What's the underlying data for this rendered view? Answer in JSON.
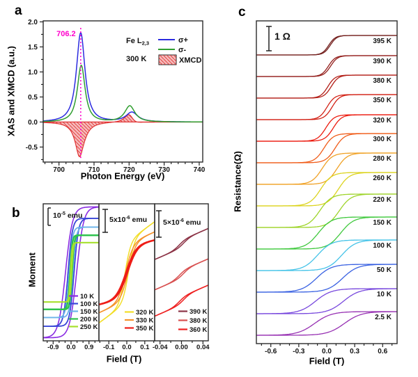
{
  "panels": {
    "a_letter": "a",
    "b_letter": "b",
    "c_letter": "c"
  },
  "chart_data": [
    {
      "id": "a",
      "type": "line",
      "xlabel": "Photon Energy (eV)",
      "ylabel": "XAS and XMCD (a.u.)",
      "xlim": [
        695.5,
        741
      ],
      "ylim": [
        -0.8,
        2.02
      ],
      "xticks": [
        700,
        710,
        720,
        730,
        740
      ],
      "xtick_labels": [
        "700",
        "710",
        "720",
        "730",
        "740"
      ],
      "ytick_values": [
        -0.5,
        0.0,
        0.5,
        1.0,
        1.5,
        2.0
      ],
      "ytick_labels": [
        "-0.5",
        "0.0",
        "0.5",
        "1.0",
        "1.5",
        "2.0"
      ],
      "x_minor_step": 2,
      "y_minor_step": 0.25,
      "annotation": {
        "text": "706.2",
        "x": 706.2,
        "color": "#ff00cc"
      },
      "legend": {
        "sample": "Fe L",
        "sample_sub": "2,3",
        "temperature": "300 K",
        "entries": [
          {
            "label": "σ+",
            "color": "#2b2bdf"
          },
          {
            "label": "σ-",
            "color": "#2f9e2f"
          },
          {
            "label": "XMCD",
            "fill": "#f5baba",
            "hatch": "#e03434"
          }
        ]
      },
      "series": [
        {
          "name": "sigma_plus",
          "color": "#2b2bdf",
          "peaks": [
            {
              "center": 706.2,
              "amp": 1.78,
              "hwhm": 1.6
            },
            {
              "center": 720.8,
              "amp": 0.19,
              "hwhm": 2.2
            }
          ]
        },
        {
          "name": "sigma_minus",
          "color": "#2f9e2f",
          "peaks": [
            {
              "center": 706.35,
              "amp": 1.13,
              "hwhm": 1.45
            },
            {
              "center": 720.2,
              "amp": 0.32,
              "hwhm": 1.9
            }
          ]
        }
      ],
      "xmcd": {
        "name": "XMCD",
        "formula": "sigma_minus - sigma_plus",
        "fill": "#f5baba",
        "hatch": "#e03434",
        "min": {
          "x": 706.2,
          "y": -0.65
        },
        "max": {
          "x": 720.3,
          "y": 0.13
        }
      }
    },
    {
      "id": "b",
      "type": "line",
      "xlabel": "Field (T)",
      "ylabel": "Moment",
      "subpanels": [
        {
          "scale_bar": {
            "prefix": "10",
            "exp": "-5",
            "suffix": " emu"
          },
          "xlim": [
            -1.4,
            1.4
          ],
          "xtick_values": [
            -0.9,
            0,
            0.9
          ],
          "xtick_labels": [
            "-0.9",
            "0.0",
            "0.9"
          ],
          "x_minor_step": 0.3,
          "series": [
            {
              "label": "10 K",
              "color": "#8a2be2",
              "sat": 0.97,
              "hc": 0.28,
              "w": 0.35,
              "lw": 1.6
            },
            {
              "label": "100 K",
              "color": "#3a46d8",
              "sat": 0.8,
              "hc": 0.15,
              "w": 0.22,
              "lw": 1.8
            },
            {
              "label": "150 K",
              "color": "#6cb4ea",
              "sat": 0.67,
              "hc": 0.09,
              "w": 0.17,
              "lw": 1.8
            },
            {
              "label": "200 K",
              "color": "#2ec24e",
              "sat": 0.55,
              "hc": 0.05,
              "w": 0.11,
              "lw": 2.4
            },
            {
              "label": "250 K",
              "color": "#a6e02c",
              "sat": 0.44,
              "hc": 0.03,
              "w": 0.08,
              "lw": 1.8
            }
          ]
        },
        {
          "scale_bar": {
            "prefix": "5x10",
            "exp": "-6",
            "suffix": " emu"
          },
          "xlim": [
            -0.155,
            0.155
          ],
          "xtick_values": [
            -0.1,
            0,
            0.1
          ],
          "xtick_labels": [
            "-0.1",
            "0.0",
            "0.1"
          ],
          "x_minor_step": 0.05,
          "series": [
            {
              "label": "320 K",
              "color": "#f2de2a",
              "amp": 0.45,
              "w": 0.032,
              "slope": 0.3,
              "hc": 0.01,
              "lw": 1.5
            },
            {
              "label": "330 K",
              "color": "#f5922b",
              "amp": 0.42,
              "w": 0.042,
              "slope": 0.18,
              "hc": 0.007,
              "lw": 1.5
            },
            {
              "label": "350 K",
              "color": "#ee1d17",
              "amp": 0.4,
              "w": 0.055,
              "slope": 0.08,
              "hc": 0.004,
              "lw": 2.4
            }
          ]
        },
        {
          "scale_bar": {
            "prefix": "5×10",
            "exp": "-6",
            "suffix": " emu"
          },
          "xlim": [
            -0.05,
            0.05
          ],
          "xtick_values": [
            -0.04,
            0,
            0.04
          ],
          "xtick_labels": [
            "-0.04",
            "0.00",
            "0.04"
          ],
          "x_minor_step": 0.02,
          "series": [
            {
              "label": "390 K",
              "color": "#8c3346",
              "offset": 0.42,
              "slope": 0.17,
              "amp": 0.06,
              "w": 0.013,
              "hc": 0.004,
              "lw": 1.5
            },
            {
              "label": "380 K",
              "color": "#d85050",
              "offset": -0.03,
              "slope": 0.17,
              "amp": 0.06,
              "w": 0.013,
              "hc": 0.004,
              "lw": 1.5
            },
            {
              "label": "360 K",
              "color": "#ee2020",
              "offset": -0.42,
              "slope": 0.17,
              "amp": 0.06,
              "w": 0.013,
              "hc": 0.004,
              "lw": 1.5
            }
          ]
        }
      ]
    },
    {
      "id": "c",
      "type": "line",
      "xlabel": "Field (T)",
      "ylabel": "Resistance(Ω)",
      "scale_bar": {
        "label": "1 Ω"
      },
      "xlim": [
        -0.755,
        0.755
      ],
      "xtick_values": [
        -0.6,
        -0.3,
        0.0,
        0.3,
        0.6
      ],
      "xtick_labels": [
        "-0.6",
        "-0.3",
        "0.0",
        "0.3",
        "0.6"
      ],
      "x_minor_step": 0.1,
      "transition_center": 0.03,
      "series": [
        {
          "label": "395 K",
          "color": "#74211f",
          "base": 79,
          "step": 28,
          "hc": 0.008,
          "w": 0.07
        },
        {
          "label": "390 K",
          "color": "#931f1c",
          "base": 110,
          "step": 30,
          "hc": 0.012,
          "w": 0.074
        },
        {
          "label": "380 K",
          "color": "#b31f18",
          "base": 141,
          "step": 33,
          "hc": 0.018,
          "w": 0.078
        },
        {
          "label": "350 K",
          "color": "#d22115",
          "base": 172,
          "step": 36,
          "hc": 0.027,
          "w": 0.083
        },
        {
          "label": "320 K",
          "color": "#ec1b0f",
          "base": 203,
          "step": 38,
          "hc": 0.04,
          "w": 0.09
        },
        {
          "label": "300 K",
          "color": "#f05c19",
          "base": 234,
          "step": 42,
          "hc": 0.06,
          "w": 0.1
        },
        {
          "label": "280 K",
          "color": "#f0a226",
          "base": 265,
          "step": 45,
          "hc": 0.08,
          "w": 0.11
        },
        {
          "label": "260 K",
          "color": "#dcd420",
          "base": 296,
          "step": 48,
          "hc": 0.095,
          "w": 0.118
        },
        {
          "label": "220 K",
          "color": "#9ed42a",
          "base": 327,
          "step": 48,
          "hc": 0.105,
          "w": 0.125
        },
        {
          "label": "150 K",
          "color": "#40c93e",
          "base": 358,
          "step": 46,
          "hc": 0.12,
          "w": 0.14
        },
        {
          "label": "100 K",
          "color": "#45c3e8",
          "base": 389,
          "step": 44,
          "hc": 0.13,
          "w": 0.15
        },
        {
          "label": "50 K",
          "color": "#3a62e2",
          "base": 420,
          "step": 40,
          "hc": 0.14,
          "w": 0.16
        },
        {
          "label": "10 K",
          "color": "#7747dd",
          "base": 451,
          "step": 36,
          "hc": 0.15,
          "w": 0.17
        },
        {
          "label": "2.5 K",
          "color": "#962fb2",
          "base": 482,
          "step": 34,
          "hc": 0.16,
          "w": 0.18
        }
      ]
    }
  ]
}
